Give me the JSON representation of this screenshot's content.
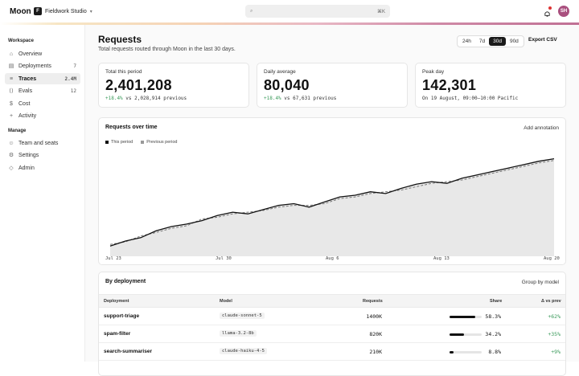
{
  "app": {
    "brand": "Moon",
    "workspace_initial": "F",
    "workspace": "Fieldwork Studio",
    "search_shortcut": "⌘K",
    "avatar_initials": "SH"
  },
  "sidebar": {
    "workspace_label": "Workspace",
    "items": [
      {
        "label": "Overview",
        "icon": "grid-icon"
      },
      {
        "label": "Deployments",
        "icon": "layers-icon",
        "count": "7"
      },
      {
        "label": "Traces",
        "icon": "traces-icon",
        "count": "2.4M"
      },
      {
        "label": "Evals",
        "icon": "code-icon",
        "count": "12"
      },
      {
        "label": "Cost",
        "icon": "dollar-icon"
      },
      {
        "label": "Activity",
        "icon": "plus-icon"
      }
    ],
    "manage_label": "Manage",
    "manage_items": [
      {
        "label": "Team and seats",
        "icon": "people-icon"
      },
      {
        "label": "Settings",
        "icon": "gear-icon"
      },
      {
        "label": "Admin",
        "icon": "shield-icon"
      }
    ]
  },
  "page": {
    "title": "Requests",
    "subtitle": "Total requests routed through Moon in the last 30 days.",
    "ranges": [
      "24h",
      "7d",
      "30d",
      "90d"
    ],
    "selected_range": "30d",
    "export_label": "Export CSV"
  },
  "kpis": [
    {
      "label": "Total this period",
      "value": "2,401,208",
      "delta": "+18.4%",
      "rest": " vs 2,028,914 previous"
    },
    {
      "label": "Daily average",
      "value": "80,040",
      "delta": "+18.4%",
      "rest": " vs 67,631 previous"
    },
    {
      "label": "Peak day",
      "value": "142,301",
      "delta": "",
      "rest": "On 19 August, 09:00–10:00 Pacific"
    }
  ],
  "chart": {
    "title": "Requests over time",
    "annotation_label": "Add annotation",
    "legend_this": "This period",
    "legend_prev": "Previous period",
    "x_ticks": [
      "Jul 23",
      "Jul 30",
      "Aug 6",
      "Aug 13",
      "Aug 20"
    ]
  },
  "chart_data": {
    "type": "area",
    "x": [
      "Jul 22",
      "Jul 23",
      "Jul 24",
      "Jul 25",
      "Jul 26",
      "Jul 27",
      "Jul 28",
      "Jul 29",
      "Jul 30",
      "Jul 31",
      "Aug 1",
      "Aug 2",
      "Aug 3",
      "Aug 4",
      "Aug 5",
      "Aug 6",
      "Aug 7",
      "Aug 8",
      "Aug 9",
      "Aug 10",
      "Aug 11",
      "Aug 12",
      "Aug 13",
      "Aug 14",
      "Aug 15",
      "Aug 16",
      "Aug 17",
      "Aug 18",
      "Aug 19",
      "Aug 20"
    ],
    "series": [
      {
        "name": "This period",
        "values": [
          12,
          18,
          22,
          30,
          35,
          38,
          42,
          48,
          52,
          50,
          55,
          60,
          62,
          58,
          64,
          70,
          72,
          76,
          74,
          80,
          85,
          88,
          86,
          92,
          96,
          100,
          104,
          108,
          112,
          115
        ]
      },
      {
        "name": "Previous period",
        "values": [
          14,
          17,
          24,
          28,
          33,
          36,
          44,
          46,
          50,
          52,
          54,
          58,
          60,
          60,
          62,
          68,
          70,
          74,
          76,
          78,
          82,
          86,
          88,
          90,
          94,
          98,
          102,
          106,
          110,
          113
        ]
      }
    ],
    "ylim": [
      0,
      125
    ],
    "grid": false,
    "legend": "top-left"
  },
  "table": {
    "title": "By deployment",
    "group_label": "Group by model",
    "headers": {
      "deployment": "Deployment",
      "model": "Model",
      "requests": "Requests",
      "share": "Share",
      "delta": "Δ vs prev"
    },
    "rows": [
      {
        "deployment": "support-triage",
        "model": "claude-sonnet-5",
        "requests": "1400K",
        "share": "58.3%",
        "share_frac": 0.8,
        "delta": "+62%"
      },
      {
        "deployment": "spam-filter",
        "model": "llama-3.2-8b",
        "requests": "820K",
        "share": "34.2%",
        "share_frac": 0.45,
        "delta": "+35%"
      },
      {
        "deployment": "search-summariser",
        "model": "claude-haiku-4-5",
        "requests": "210K",
        "share": "8.8%",
        "share_frac": 0.12,
        "delta": "+9%"
      }
    ]
  },
  "colors": {
    "accent": "#1a1a1a",
    "positive": "#3a9a5a",
    "avatar": "#a94f7e"
  }
}
